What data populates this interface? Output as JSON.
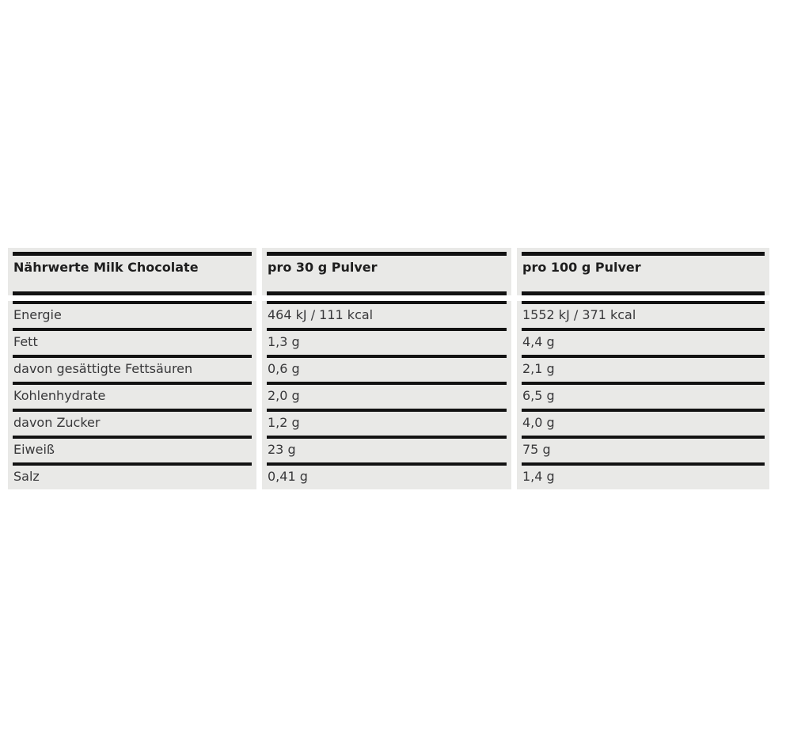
{
  "table": {
    "header": {
      "col1": "Nährwerte Milk Chocolate",
      "col2": "pro 30 g Pulver",
      "col3": "pro 100 g Pulver"
    },
    "rows": [
      {
        "label": "Energie",
        "per_30g": "464 kJ / 111 kcal",
        "per_100g": "1552 kJ / 371 kcal"
      },
      {
        "label": "Fett",
        "per_30g": "1,3 g",
        "per_100g": "4,4 g"
      },
      {
        "label": "davon gesättigte Fettsäuren",
        "per_30g": "0,6 g",
        "per_100g": "2,1 g"
      },
      {
        "label": "Kohlenhydrate",
        "per_30g": "2,0 g",
        "per_100g": "6,5 g"
      },
      {
        "label": "davon Zucker",
        "per_30g": "1,2 g",
        "per_100g": "4,0 g"
      },
      {
        "label": "Eiweiß",
        "per_30g": "23 g",
        "per_100g": "75 g"
      },
      {
        "label": "Salz",
        "per_30g": "0,41 g",
        "per_100g": "1,4 g"
      }
    ],
    "colors": {
      "page_bg": "#ffffff",
      "cell_bg": "#e9e9e7",
      "rule_color": "#121212",
      "header_text": "#1e1e1e",
      "body_text": "#38383a"
    }
  }
}
